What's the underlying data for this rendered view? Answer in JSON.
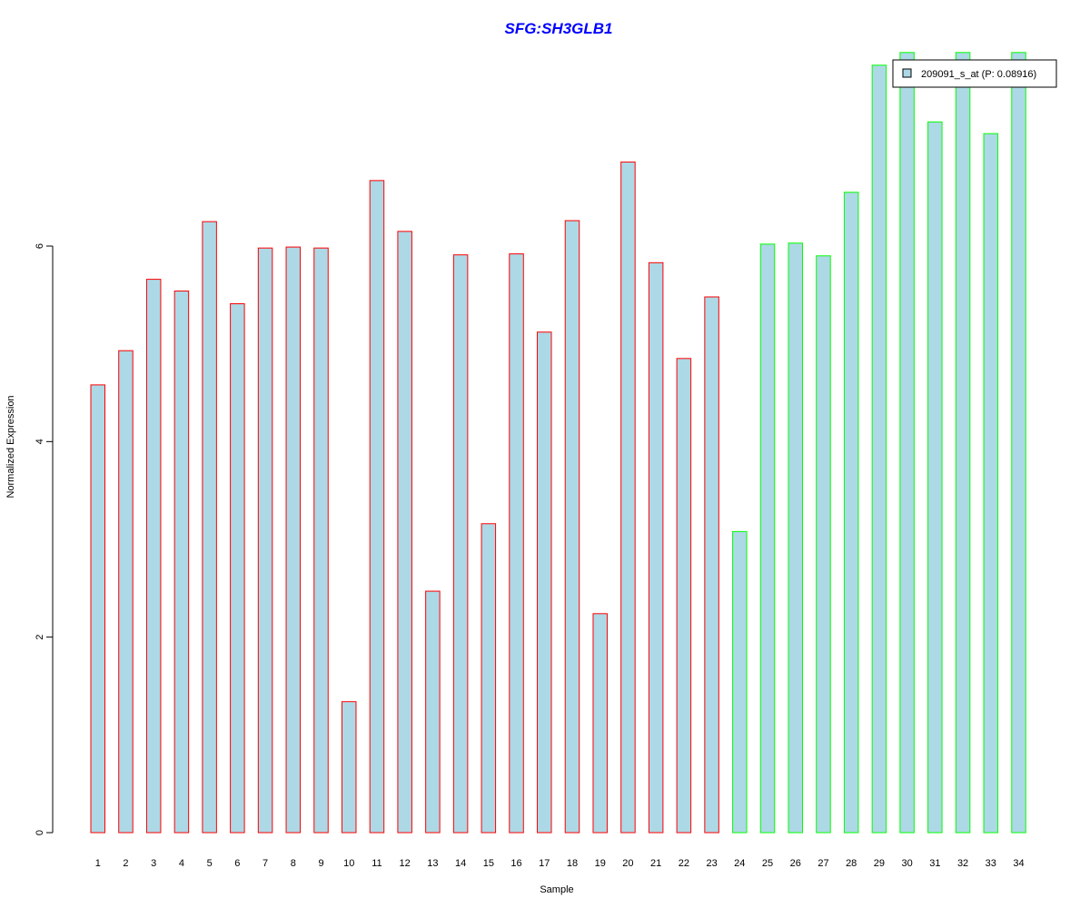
{
  "chart_data": {
    "type": "bar",
    "title": "SFG:SH3GLB1",
    "xlabel": "Sample",
    "ylabel": "Normalized Expression",
    "categories": [
      "1",
      "2",
      "3",
      "4",
      "5",
      "6",
      "7",
      "8",
      "9",
      "10",
      "11",
      "12",
      "13",
      "14",
      "15",
      "16",
      "17",
      "18",
      "19",
      "20",
      "21",
      "22",
      "23",
      "24",
      "25",
      "26",
      "27",
      "28",
      "29",
      "30",
      "31",
      "32",
      "33",
      "34"
    ],
    "values": [
      4.58,
      4.93,
      5.66,
      5.54,
      6.25,
      5.41,
      5.98,
      5.99,
      5.98,
      1.34,
      6.67,
      6.15,
      2.47,
      5.91,
      3.16,
      5.92,
      5.12,
      6.26,
      2.24,
      6.86,
      5.83,
      4.85,
      5.48,
      3.08,
      6.02,
      6.03,
      5.9,
      6.55,
      7.85,
      7.98,
      7.27,
      7.98,
      7.15,
      7.98
    ],
    "groups": [
      "red",
      "red",
      "red",
      "red",
      "red",
      "red",
      "red",
      "red",
      "red",
      "red",
      "red",
      "red",
      "red",
      "red",
      "red",
      "red",
      "red",
      "red",
      "red",
      "red",
      "red",
      "red",
      "red",
      "green",
      "green",
      "green",
      "green",
      "green",
      "green",
      "green",
      "green",
      "green",
      "green",
      "green"
    ],
    "yticks": [
      0,
      2,
      4,
      6
    ],
    "ylim": [
      0,
      7.98
    ],
    "grid": false,
    "legend": {
      "position": "top-right",
      "entries": [
        "209091_s_at (P: 0.08916)"
      ]
    },
    "colors": {
      "bar_fill": "#add8e6",
      "border_group_1": "#ff0000",
      "border_group_2": "#00ff00",
      "title": "#0000ff"
    }
  }
}
